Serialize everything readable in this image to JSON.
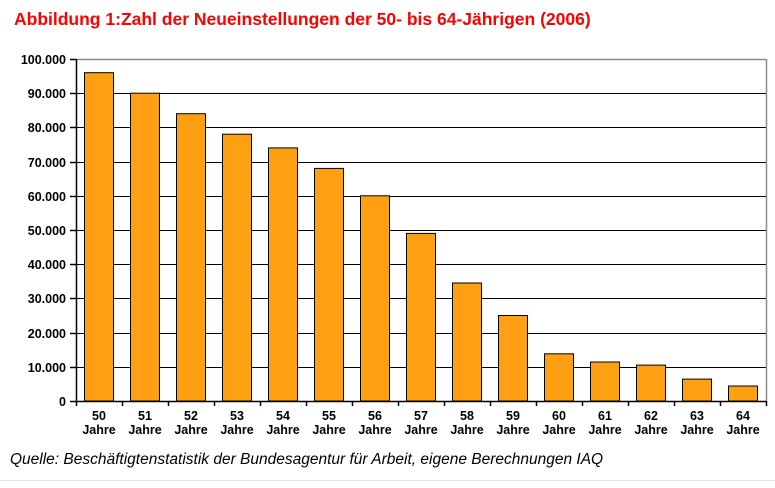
{
  "header": {
    "label": "Abbildung 1:",
    "title": "Zahl der Neueinstellungen der 50- bis 64-Jährigen (2006)"
  },
  "footer": {
    "source": "Quelle: Beschäftigtenstatistik der Bundesagentur für Arbeit, eigene Berechnungen IAQ"
  },
  "colors": {
    "title_red": "#ff0000",
    "bar_fill": "#ffa013",
    "bar_border": "#000000",
    "gridline": "#000000",
    "plot_border": "#8c8c8c",
    "axis": "#000000",
    "label_text": "#000000"
  },
  "chart_data": {
    "type": "bar",
    "title": "Abbildung 1: Zahl der Neueinstellungen der 50- bis 64-Jährigen (2006)",
    "categories": [
      "50 Jahre",
      "51 Jahre",
      "52 Jahre",
      "53 Jahre",
      "54 Jahre",
      "55 Jahre",
      "56 Jahre",
      "57 Jahre",
      "58 Jahre",
      "59 Jahre",
      "60 Jahre",
      "61 Jahre",
      "62 Jahre",
      "63 Jahre",
      "64 Jahre"
    ],
    "values": [
      96000,
      90000,
      84000,
      78000,
      74000,
      68000,
      60000,
      49000,
      34500,
      25000,
      13800,
      11400,
      10500,
      6400,
      4400
    ],
    "xlabel": "",
    "ylabel": "",
    "ylim": [
      0,
      100000
    ],
    "ytick_step": 10000,
    "ytick_labels": [
      "0",
      "10.000",
      "20.000",
      "30.000",
      "40.000",
      "50.000",
      "60.000",
      "70.000",
      "80.000",
      "90.000",
      "100.000"
    ],
    "grid": true,
    "legend": false,
    "bar_color": "#ffa013",
    "source": "Quelle: Beschäftigtenstatistik der Bundesagentur für Arbeit, eigene Berechnungen IAQ"
  }
}
